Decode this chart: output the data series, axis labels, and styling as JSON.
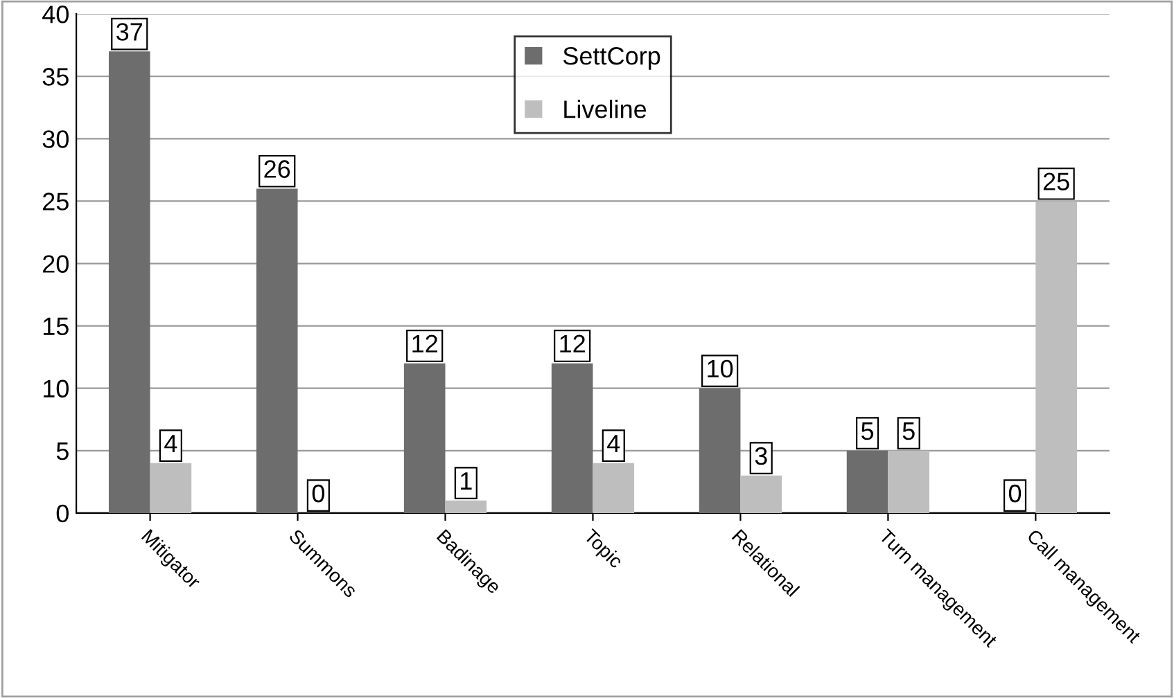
{
  "chart_data": {
    "type": "bar",
    "categories": [
      "Mitigator",
      "Summons",
      "Badinage",
      "Topic",
      "Relational",
      "Turn management",
      "Call management"
    ],
    "series": [
      {
        "name": "SettCorp",
        "color": "#6d6d6d",
        "values": [
          37,
          26,
          12,
          12,
          10,
          5,
          0
        ]
      },
      {
        "name": "Liveline",
        "color": "#bebebe",
        "values": [
          4,
          0,
          1,
          4,
          3,
          5,
          25
        ]
      }
    ],
    "ylim": [
      0,
      40
    ],
    "yticks": [
      0,
      5,
      10,
      15,
      20,
      25,
      30,
      35,
      40
    ],
    "grid": "y",
    "legend": "top",
    "data_labels": true
  }
}
